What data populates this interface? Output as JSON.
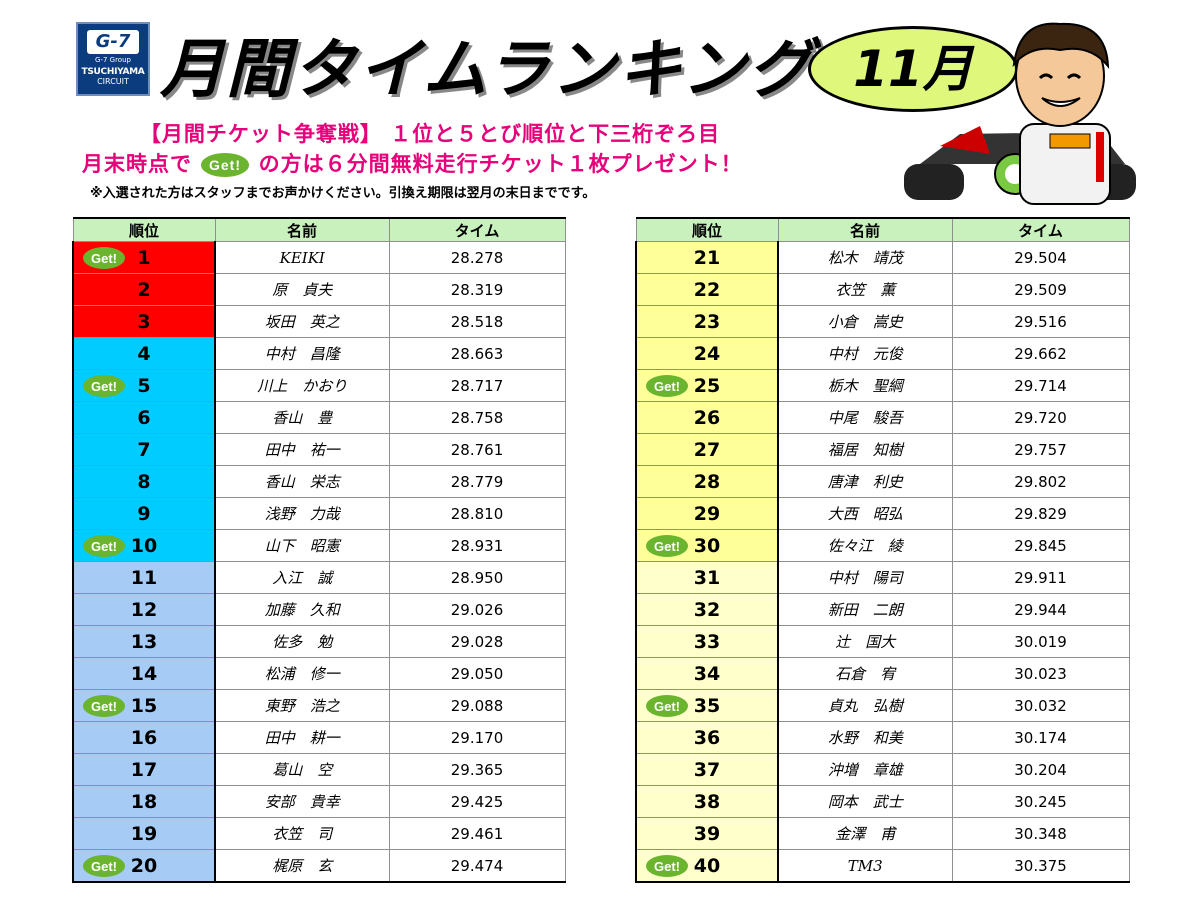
{
  "header": {
    "logo_brand": "G-7",
    "logo_group": "G-7 Group",
    "logo_name": "TSUCHIYAMA",
    "logo_sub": "CIRCUIT",
    "title": "月間タイムランキング",
    "month": "11月"
  },
  "notice": {
    "line1": "【月間チケット争奪戦】 １位と５とび順位と下三桁ぞろ目",
    "line2_pre": "月末時点で",
    "line2_post": "の方は６分間無料走行チケット１枚プレゼント！",
    "line3": "※入選された方はスタッフまでお声かけください。引換え期限は翌月の末日までです。"
  },
  "badge_text": "Get!",
  "columns": {
    "rank": "順位",
    "name": "名前",
    "time": "タイム"
  },
  "colors": {
    "top3": "#ff0000",
    "r4_10": "#00ccff",
    "r11_20": "#a6cbf5",
    "r21_30": "#ffff99",
    "r31_40": "#ffffcc",
    "header": "#c9f1bd",
    "badge": "#6ab42e"
  },
  "left_rows": [
    {
      "rank": "1",
      "name": "KEIKI",
      "time": "28.278",
      "get": true
    },
    {
      "rank": "2",
      "name": "原　貞夫",
      "time": "28.319",
      "get": false
    },
    {
      "rank": "3",
      "name": "坂田　英之",
      "time": "28.518",
      "get": false
    },
    {
      "rank": "4",
      "name": "中村　昌隆",
      "time": "28.663",
      "get": false
    },
    {
      "rank": "5",
      "name": "川上　かおり",
      "time": "28.717",
      "get": true
    },
    {
      "rank": "6",
      "name": "香山　豊",
      "time": "28.758",
      "get": false
    },
    {
      "rank": "7",
      "name": "田中　祐一",
      "time": "28.761",
      "get": false
    },
    {
      "rank": "8",
      "name": "香山　栄志",
      "time": "28.779",
      "get": false
    },
    {
      "rank": "9",
      "name": "浅野　力哉",
      "time": "28.810",
      "get": false
    },
    {
      "rank": "10",
      "name": "山下　昭憲",
      "time": "28.931",
      "get": true
    },
    {
      "rank": "11",
      "name": "入江　誠",
      "time": "28.950",
      "get": false
    },
    {
      "rank": "12",
      "name": "加藤　久和",
      "time": "29.026",
      "get": false
    },
    {
      "rank": "13",
      "name": "佐多　勉",
      "time": "29.028",
      "get": false
    },
    {
      "rank": "14",
      "name": "松浦　修一",
      "time": "29.050",
      "get": false
    },
    {
      "rank": "15",
      "name": "東野　浩之",
      "time": "29.088",
      "get": true
    },
    {
      "rank": "16",
      "name": "田中　耕一",
      "time": "29.170",
      "get": false
    },
    {
      "rank": "17",
      "name": "葛山　空",
      "time": "29.365",
      "get": false
    },
    {
      "rank": "18",
      "name": "安部　貴幸",
      "time": "29.425",
      "get": false
    },
    {
      "rank": "19",
      "name": "衣笠　司",
      "time": "29.461",
      "get": false
    },
    {
      "rank": "20",
      "name": "梶原　玄",
      "time": "29.474",
      "get": true
    }
  ],
  "right_rows": [
    {
      "rank": "21",
      "name": "松木　靖茂",
      "time": "29.504",
      "get": false
    },
    {
      "rank": "22",
      "name": "衣笠　薫",
      "time": "29.509",
      "get": false
    },
    {
      "rank": "23",
      "name": "小倉　嵩史",
      "time": "29.516",
      "get": false
    },
    {
      "rank": "24",
      "name": "中村　元俊",
      "time": "29.662",
      "get": false
    },
    {
      "rank": "25",
      "name": "栃木　聖綱",
      "time": "29.714",
      "get": true
    },
    {
      "rank": "26",
      "name": "中尾　駿吾",
      "time": "29.720",
      "get": false
    },
    {
      "rank": "27",
      "name": "福居　知樹",
      "time": "29.757",
      "get": false
    },
    {
      "rank": "28",
      "name": "唐津　利史",
      "time": "29.802",
      "get": false
    },
    {
      "rank": "29",
      "name": "大西　昭弘",
      "time": "29.829",
      "get": false
    },
    {
      "rank": "30",
      "name": "佐々江　綾",
      "time": "29.845",
      "get": true
    },
    {
      "rank": "31",
      "name": "中村　陽司",
      "time": "29.911",
      "get": false
    },
    {
      "rank": "32",
      "name": "新田　二朗",
      "time": "29.944",
      "get": false
    },
    {
      "rank": "33",
      "name": "辻　国大",
      "time": "30.019",
      "get": false
    },
    {
      "rank": "34",
      "name": "石倉　宥",
      "time": "30.023",
      "get": false
    },
    {
      "rank": "35",
      "name": "貞丸　弘樹",
      "time": "30.032",
      "get": true
    },
    {
      "rank": "36",
      "name": "水野　和美",
      "time": "30.174",
      "get": false
    },
    {
      "rank": "37",
      "name": "沖増　章雄",
      "time": "30.204",
      "get": false
    },
    {
      "rank": "38",
      "name": "岡本　武士",
      "time": "30.245",
      "get": false
    },
    {
      "rank": "39",
      "name": "金澤　甫",
      "time": "30.348",
      "get": false
    },
    {
      "rank": "40",
      "name": "TM3",
      "time": "30.375",
      "get": true
    }
  ]
}
